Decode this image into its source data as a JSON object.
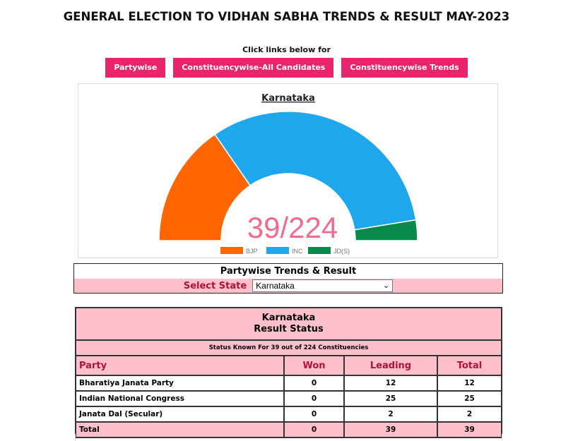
{
  "header": {
    "title": "GENERAL ELECTION TO VIDHAN SABHA TRENDS & RESULT MAY-2023",
    "subtitle": "Click links below for"
  },
  "links": [
    {
      "label": "Partywise"
    },
    {
      "label": "Constituencywise-All Candidates"
    },
    {
      "label": "Constituencywise Trends"
    }
  ],
  "chart_data": {
    "type": "pie",
    "style": "half-donut",
    "title": "Karnataka",
    "center_label": "39/224",
    "categories": [
      "BJP",
      "INC",
      "JD(S)"
    ],
    "values": [
      12,
      25,
      2
    ],
    "colors": [
      "#ff6600",
      "#1ea7ec",
      "#0a8a4a"
    ],
    "legend_position": "bottom"
  },
  "trends": {
    "title": "Partywise Trends & Result",
    "select_label": "Select State",
    "selected_state": "Karnataka"
  },
  "result": {
    "state": "Karnataka",
    "heading": "Result Status",
    "status_line": "Status Known For 39 out of 224 Constituencies",
    "columns": [
      "Party",
      "Won",
      "Leading",
      "Total"
    ],
    "rows": [
      {
        "party": "Bharatiya Janata Party",
        "won": "0",
        "leading": "12",
        "total": "12"
      },
      {
        "party": "Indian National Congress",
        "won": "0",
        "leading": "25",
        "total": "25"
      },
      {
        "party": "Janata Dal (Secular)",
        "won": "0",
        "leading": "2",
        "total": "2"
      }
    ],
    "total": {
      "party": "Total",
      "won": "0",
      "leading": "39",
      "total": "39"
    }
  },
  "icons": {
    "select_arrow": "chevron-down-icon"
  },
  "colors": {
    "accent": "#e8246c",
    "pink_bg": "#ffc0cb",
    "label_red": "#b0103a",
    "center_text": "#f06c8c"
  }
}
